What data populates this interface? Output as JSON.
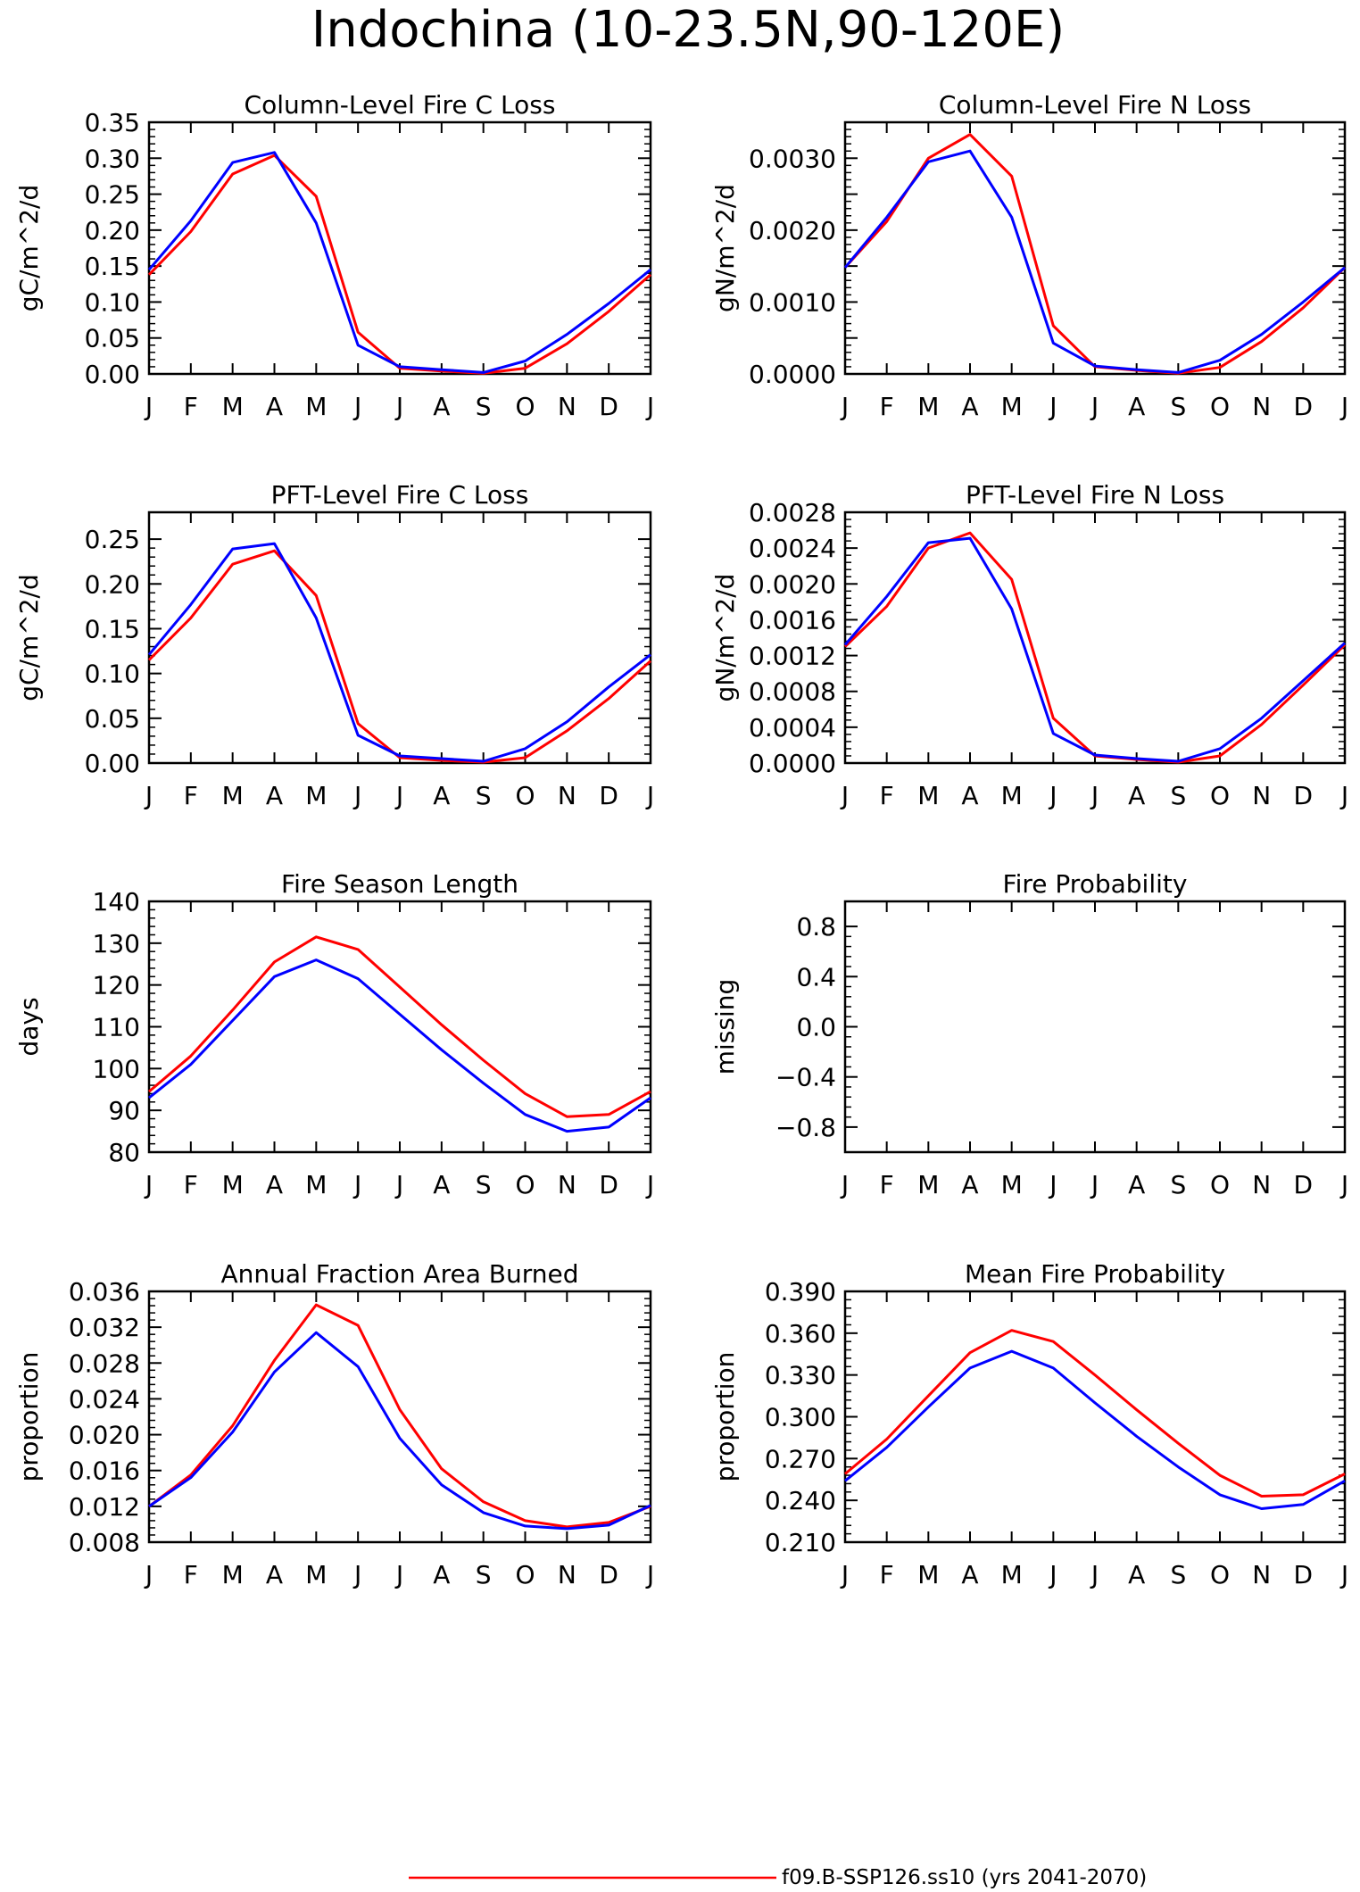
{
  "page_title": "Indochina (10-23.5N,90-120E)",
  "legend": {
    "entries": [
      {
        "label": "f09.B-SSP126.ss10 (yrs 2041-2070)",
        "color": "#ff0000"
      }
    ]
  },
  "series_colors": {
    "red": "#ff0000",
    "blue": "#0000ff"
  },
  "chart_data": [
    {
      "type": "line",
      "title": "Column-Level Fire C Loss",
      "ylabel": "gC/m^2/d",
      "categories": [
        "J",
        "F",
        "M",
        "A",
        "M",
        "J",
        "J",
        "A",
        "S",
        "O",
        "N",
        "D",
        "J"
      ],
      "ylim": [
        0,
        0.35
      ],
      "yticks": [
        "0.00",
        "0.05",
        "0.10",
        "0.15",
        "0.20",
        "0.25",
        "0.30",
        "0.35"
      ],
      "series": [
        {
          "color": "#ff0000",
          "values": [
            0.138,
            0.198,
            0.278,
            0.304,
            0.247,
            0.058,
            0.008,
            0.004,
            0.001,
            0.008,
            0.042,
            0.087,
            0.138
          ]
        },
        {
          "color": "#0000ff",
          "values": [
            0.145,
            0.213,
            0.294,
            0.308,
            0.21,
            0.04,
            0.01,
            0.006,
            0.002,
            0.018,
            0.055,
            0.098,
            0.145
          ]
        }
      ]
    },
    {
      "type": "line",
      "title": "Column-Level Fire N Loss",
      "ylabel": "gN/m^2/d",
      "categories": [
        "J",
        "F",
        "M",
        "A",
        "M",
        "J",
        "J",
        "A",
        "S",
        "O",
        "N",
        "D",
        "J"
      ],
      "ylim": [
        0,
        0.0035
      ],
      "yticks": [
        "0.0000",
        "",
        "0.0010",
        "",
        "0.0020",
        "",
        "0.0030",
        ""
      ],
      "series": [
        {
          "color": "#ff0000",
          "values": [
            0.00148,
            0.00212,
            0.003,
            0.00333,
            0.00275,
            0.00067,
            0.0001,
            5e-05,
            1e-05,
            9e-05,
            0.00045,
            0.00092,
            0.00148
          ]
        },
        {
          "color": "#0000ff",
          "values": [
            0.00148,
            0.00218,
            0.00295,
            0.0031,
            0.00218,
            0.00043,
            0.00011,
            6e-05,
            2e-05,
            0.00019,
            0.00055,
            0.001,
            0.00148
          ]
        }
      ]
    },
    {
      "type": "line",
      "title": "PFT-Level Fire C Loss",
      "ylabel": "gC/m^2/d",
      "categories": [
        "J",
        "F",
        "M",
        "A",
        "M",
        "J",
        "J",
        "A",
        "S",
        "O",
        "N",
        "D",
        "J"
      ],
      "ylim": [
        0,
        0.28
      ],
      "yticks": [
        "0.00",
        "0.05",
        "0.10",
        "0.15",
        "0.20",
        "0.25"
      ],
      "ytick_step": 0.05,
      "series": [
        {
          "color": "#ff0000",
          "values": [
            0.115,
            0.162,
            0.222,
            0.237,
            0.187,
            0.044,
            0.006,
            0.003,
            0.001,
            0.006,
            0.036,
            0.072,
            0.114
          ]
        },
        {
          "color": "#0000ff",
          "values": [
            0.121,
            0.177,
            0.239,
            0.245,
            0.162,
            0.031,
            0.008,
            0.005,
            0.002,
            0.016,
            0.046,
            0.085,
            0.121
          ]
        }
      ]
    },
    {
      "type": "line",
      "title": "PFT-Level Fire N Loss",
      "ylabel": "gN/m^2/d",
      "categories": [
        "J",
        "F",
        "M",
        "A",
        "M",
        "J",
        "J",
        "A",
        "S",
        "O",
        "N",
        "D",
        "J"
      ],
      "ylim": [
        0,
        0.0028
      ],
      "yticks": [
        "0.0000",
        "0.0004",
        "0.0008",
        "0.0012",
        "0.0016",
        "0.0020",
        "0.0024",
        "0.0028"
      ],
      "series": [
        {
          "color": "#ff0000",
          "values": [
            0.0013,
            0.00175,
            0.0024,
            0.00257,
            0.00205,
            0.0005,
            8e-05,
            4e-05,
            1e-05,
            8e-05,
            0.00043,
            0.00087,
            0.00132
          ]
        },
        {
          "color": "#0000ff",
          "values": [
            0.00132,
            0.00186,
            0.00246,
            0.00251,
            0.00172,
            0.00033,
            9e-05,
            5e-05,
            2e-05,
            0.00016,
            0.0005,
            0.00092,
            0.00134
          ]
        }
      ]
    },
    {
      "type": "line",
      "title": "Fire Season Length",
      "ylabel": "days",
      "categories": [
        "J",
        "F",
        "M",
        "A",
        "M",
        "J",
        "J",
        "A",
        "S",
        "O",
        "N",
        "D",
        "J"
      ],
      "ylim": [
        80,
        140
      ],
      "yticks": [
        "80",
        "90",
        "100",
        "110",
        "120",
        "130",
        "140"
      ],
      "series": [
        {
          "color": "#ff0000",
          "values": [
            94.5,
            103.0,
            114.0,
            125.5,
            131.5,
            128.5,
            119.5,
            110.5,
            102.0,
            94.0,
            88.5,
            89.0,
            94.5
          ]
        },
        {
          "color": "#0000ff",
          "values": [
            93.0,
            101.0,
            111.5,
            122.0,
            126.0,
            121.5,
            113.0,
            104.5,
            96.5,
            89.0,
            85.0,
            86.0,
            93.0
          ]
        }
      ]
    },
    {
      "type": "line",
      "title": "Fire Probability",
      "ylabel": "missing",
      "categories": [
        "J",
        "F",
        "M",
        "A",
        "M",
        "J",
        "J",
        "A",
        "S",
        "O",
        "N",
        "D",
        "J"
      ],
      "ylim": [
        -1.0,
        1.0
      ],
      "yticks": [
        "-0.8",
        "-0.4",
        "0.0",
        "0.4",
        "0.8"
      ],
      "ytick_values": [
        -0.8,
        -0.4,
        0.0,
        0.4,
        0.8
      ],
      "series": []
    },
    {
      "type": "line",
      "title": "Annual Fraction Area Burned",
      "ylabel": "proportion",
      "categories": [
        "J",
        "F",
        "M",
        "A",
        "M",
        "J",
        "J",
        "A",
        "S",
        "O",
        "N",
        "D",
        "J"
      ],
      "ylim": [
        0.008,
        0.036
      ],
      "yticks": [
        "0.008",
        "0.012",
        "0.016",
        "0.020",
        "0.024",
        "0.028",
        "0.032",
        "0.036"
      ],
      "series": [
        {
          "color": "#ff0000",
          "values": [
            0.012,
            0.0155,
            0.021,
            0.0283,
            0.0345,
            0.0322,
            0.0228,
            0.0162,
            0.0125,
            0.0104,
            0.0097,
            0.0102,
            0.012
          ]
        },
        {
          "color": "#0000ff",
          "values": [
            0.012,
            0.0152,
            0.0203,
            0.027,
            0.0314,
            0.0276,
            0.0196,
            0.0144,
            0.0113,
            0.0098,
            0.0095,
            0.0099,
            0.0121
          ]
        }
      ]
    },
    {
      "type": "line",
      "title": "Mean Fire Probability",
      "ylabel": "proportion",
      "categories": [
        "J",
        "F",
        "M",
        "A",
        "M",
        "J",
        "J",
        "A",
        "S",
        "O",
        "N",
        "D",
        "J"
      ],
      "ylim": [
        0.21,
        0.39
      ],
      "yticks": [
        "0.210",
        "0.240",
        "0.270",
        "0.300",
        "0.330",
        "0.360",
        "0.390"
      ],
      "series": [
        {
          "color": "#ff0000",
          "values": [
            0.259,
            0.284,
            0.315,
            0.346,
            0.362,
            0.354,
            0.33,
            0.305,
            0.281,
            0.258,
            0.243,
            0.244,
            0.259
          ]
        },
        {
          "color": "#0000ff",
          "values": [
            0.254,
            0.278,
            0.307,
            0.335,
            0.347,
            0.335,
            0.31,
            0.286,
            0.264,
            0.244,
            0.234,
            0.237,
            0.254
          ]
        }
      ]
    }
  ]
}
